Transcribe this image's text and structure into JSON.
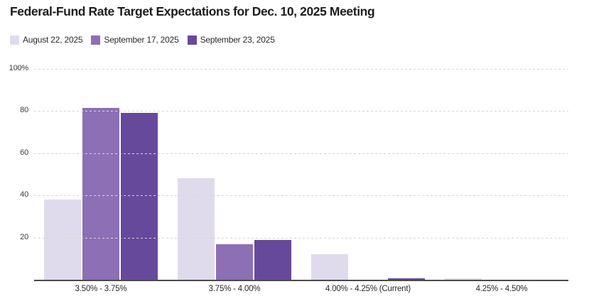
{
  "title": "Federal-Fund Rate Target Expectations for Dec. 10, 2025 Meeting",
  "chart_data": {
    "type": "bar",
    "title": "Federal-Fund Rate Target Expectations for Dec. 10, 2025 Meeting",
    "categories": [
      "3.50% - 3.75%",
      "3.75% - 4.00%",
      "4.00% - 4.25% (Current)",
      "4.25% - 4.50%"
    ],
    "series": [
      {
        "name": "August 22, 2025",
        "color": "#e0dbec",
        "values": [
          38,
          48,
          12,
          0.5
        ]
      },
      {
        "name": "September 17, 2025",
        "color": "#8c6fb5",
        "values": [
          81.5,
          17,
          0,
          0
        ]
      },
      {
        "name": "September 23, 2025",
        "color": "#67499c",
        "values": [
          79,
          19,
          0.5,
          0
        ]
      }
    ],
    "xlabel": "",
    "ylabel": "",
    "ylim": [
      0,
      100
    ],
    "y_ticks": [
      {
        "value": 100,
        "label": "100%"
      },
      {
        "value": 80,
        "label": "80"
      },
      {
        "value": 60,
        "label": "60"
      },
      {
        "value": 40,
        "label": "40"
      },
      {
        "value": 20,
        "label": "20"
      }
    ],
    "grid": "horizontal-dotted",
    "legend_position": "top-left",
    "colors": {
      "background": "#ffffff",
      "grid": "#d6d6d6",
      "axis_line": "#4a4a4a",
      "title_text": "#1d1d1d",
      "tick_text": "#3c3c3c"
    }
  }
}
